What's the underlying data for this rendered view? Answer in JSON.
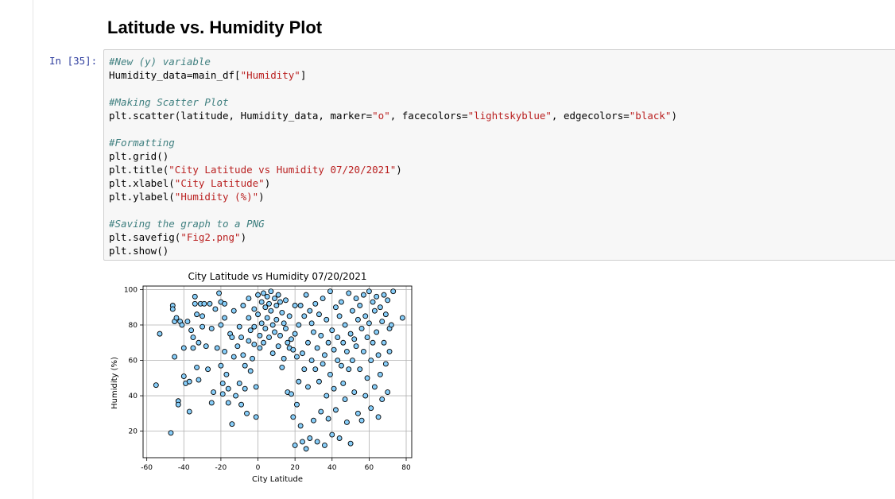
{
  "heading": "Latitude vs. Humidity Plot",
  "prompt": "In [35]:",
  "code_lines": [
    [
      {
        "t": "#New (y) variable",
        "c": "cm"
      }
    ],
    [
      {
        "t": "Humidity_data=main_df[",
        "c": ""
      },
      {
        "t": "\"Humidity\"",
        "c": "st"
      },
      {
        "t": "]",
        "c": ""
      }
    ],
    [],
    [
      {
        "t": "#Making Scatter Plot",
        "c": "cm"
      }
    ],
    [
      {
        "t": "plt.scatter(latitude, Humidity_data, marker=",
        "c": ""
      },
      {
        "t": "\"o\"",
        "c": "st"
      },
      {
        "t": ", facecolors=",
        "c": ""
      },
      {
        "t": "\"lightskyblue\"",
        "c": "st"
      },
      {
        "t": ", edgecolors=",
        "c": ""
      },
      {
        "t": "\"black\"",
        "c": "st"
      },
      {
        "t": ")",
        "c": ""
      }
    ],
    [],
    [
      {
        "t": "#Formatting",
        "c": "cm"
      }
    ],
    [
      {
        "t": "plt.grid()",
        "c": ""
      }
    ],
    [
      {
        "t": "plt.title(",
        "c": ""
      },
      {
        "t": "\"City Latitude vs Humidity 07/20/2021\"",
        "c": "st"
      },
      {
        "t": ")",
        "c": ""
      }
    ],
    [
      {
        "t": "plt.xlabel(",
        "c": ""
      },
      {
        "t": "\"City Latitude\"",
        "c": "st"
      },
      {
        "t": ")",
        "c": ""
      }
    ],
    [
      {
        "t": "plt.ylabel(",
        "c": ""
      },
      {
        "t": "\"Humidity (%)\"",
        "c": "st"
      },
      {
        "t": ")",
        "c": ""
      }
    ],
    [],
    [
      {
        "t": "#Saving the graph to a PNG",
        "c": "cm"
      }
    ],
    [
      {
        "t": "plt.savefig(",
        "c": ""
      },
      {
        "t": "\"Fig2.png\"",
        "c": "st"
      },
      {
        "t": ")",
        "c": ""
      }
    ],
    [
      {
        "t": "plt.show()",
        "c": ""
      }
    ]
  ],
  "colors": {
    "marker_face": "#87cefa",
    "marker_edge": "#000000",
    "grid": "#b0b0b0",
    "string": "#ba2121",
    "comment": "#408080",
    "prompt": "#303f9f"
  },
  "chart_data": {
    "type": "scatter",
    "title": "City Latitude vs Humidity 07/20/2021",
    "xlabel": "City Latitude",
    "ylabel": "Humidity (%)",
    "xlim": [
      -62,
      83
    ],
    "ylim": [
      5,
      102
    ],
    "xticks": [
      -60,
      -40,
      -20,
      0,
      20,
      40,
      60,
      80
    ],
    "yticks": [
      20,
      40,
      60,
      80,
      100
    ],
    "grid": true,
    "points": [
      [
        -55,
        46
      ],
      [
        -53,
        75
      ],
      [
        -47,
        19
      ],
      [
        -46,
        91
      ],
      [
        -46,
        89
      ],
      [
        -45,
        82
      ],
      [
        -45,
        62
      ],
      [
        -44,
        84
      ],
      [
        -43,
        37
      ],
      [
        -43,
        35
      ],
      [
        -42,
        82
      ],
      [
        -41,
        80
      ],
      [
        -40,
        67
      ],
      [
        -40,
        51
      ],
      [
        -39,
        47
      ],
      [
        -38,
        82
      ],
      [
        -37,
        48
      ],
      [
        -37,
        31
      ],
      [
        -36,
        77
      ],
      [
        -35,
        73
      ],
      [
        -35,
        67
      ],
      [
        -34,
        96
      ],
      [
        -34,
        92
      ],
      [
        -33,
        86
      ],
      [
        -33,
        56
      ],
      [
        -32,
        70
      ],
      [
        -32,
        49
      ],
      [
        -31,
        92
      ],
      [
        -30,
        85
      ],
      [
        -30,
        79
      ],
      [
        -29,
        92
      ],
      [
        -28,
        68
      ],
      [
        -27,
        55
      ],
      [
        -26,
        92
      ],
      [
        -25,
        36
      ],
      [
        -25,
        78
      ],
      [
        -24,
        42
      ],
      [
        -23,
        89
      ],
      [
        -22,
        67
      ],
      [
        -21,
        98
      ],
      [
        -20,
        93
      ],
      [
        -20,
        80
      ],
      [
        -20,
        57
      ],
      [
        -19,
        47
      ],
      [
        -19,
        41
      ],
      [
        -18,
        92
      ],
      [
        -18,
        84
      ],
      [
        -18,
        65
      ],
      [
        -17,
        52
      ],
      [
        -16,
        44
      ],
      [
        -16,
        36
      ],
      [
        -15,
        75
      ],
      [
        -14,
        73
      ],
      [
        -14,
        24
      ],
      [
        -13,
        88
      ],
      [
        -13,
        62
      ],
      [
        -12,
        40
      ],
      [
        -11,
        68
      ],
      [
        -10,
        79
      ],
      [
        -10,
        47
      ],
      [
        -9,
        73
      ],
      [
        -9,
        35
      ],
      [
        -8,
        91
      ],
      [
        -8,
        63
      ],
      [
        -7,
        57
      ],
      [
        -7,
        44
      ],
      [
        -6,
        30
      ],
      [
        -5,
        95
      ],
      [
        -5,
        84
      ],
      [
        -5,
        71
      ],
      [
        -4,
        77
      ],
      [
        -4,
        54
      ],
      [
        -3,
        61
      ],
      [
        -2,
        89
      ],
      [
        -2,
        79
      ],
      [
        -2,
        69
      ],
      [
        -1,
        45
      ],
      [
        -1,
        28
      ],
      [
        0,
        97
      ],
      [
        0,
        86
      ],
      [
        1,
        74
      ],
      [
        1,
        67
      ],
      [
        2,
        93
      ],
      [
        2,
        81
      ],
      [
        3,
        98
      ],
      [
        3,
        70
      ],
      [
        4,
        90
      ],
      [
        4,
        78
      ],
      [
        5,
        96
      ],
      [
        5,
        84
      ],
      [
        6,
        92
      ],
      [
        6,
        73
      ],
      [
        7,
        99
      ],
      [
        7,
        88
      ],
      [
        8,
        80
      ],
      [
        8,
        64
      ],
      [
        9,
        95
      ],
      [
        9,
        76
      ],
      [
        10,
        91
      ],
      [
        10,
        83
      ],
      [
        11,
        97
      ],
      [
        11,
        68
      ],
      [
        12,
        74
      ],
      [
        12,
        93
      ],
      [
        13,
        87
      ],
      [
        13,
        56
      ],
      [
        14,
        81
      ],
      [
        14,
        61
      ],
      [
        15,
        78
      ],
      [
        15,
        94
      ],
      [
        16,
        70
      ],
      [
        16,
        42
      ],
      [
        17,
        67
      ],
      [
        17,
        85
      ],
      [
        18,
        72
      ],
      [
        18,
        41
      ],
      [
        19,
        66
      ],
      [
        19,
        28
      ],
      [
        20,
        91
      ],
      [
        20,
        75
      ],
      [
        20,
        12
      ],
      [
        21,
        62
      ],
      [
        21,
        35
      ],
      [
        22,
        80
      ],
      [
        22,
        48
      ],
      [
        23,
        91
      ],
      [
        23,
        23
      ],
      [
        24,
        64
      ],
      [
        24,
        14
      ],
      [
        25,
        85
      ],
      [
        25,
        55
      ],
      [
        26,
        97
      ],
      [
        26,
        10
      ],
      [
        27,
        70
      ],
      [
        27,
        45
      ],
      [
        28,
        88
      ],
      [
        28,
        16
      ],
      [
        29,
        81
      ],
      [
        29,
        60
      ],
      [
        30,
        76
      ],
      [
        30,
        26
      ],
      [
        31,
        92
      ],
      [
        31,
        55
      ],
      [
        32,
        67
      ],
      [
        32,
        14
      ],
      [
        33,
        86
      ],
      [
        33,
        48
      ],
      [
        34,
        74
      ],
      [
        34,
        31
      ],
      [
        35,
        95
      ],
      [
        35,
        58
      ],
      [
        36,
        63
      ],
      [
        36,
        12
      ],
      [
        37,
        83
      ],
      [
        37,
        40
      ],
      [
        38,
        70
      ],
      [
        38,
        27
      ],
      [
        39,
        99
      ],
      [
        39,
        52
      ],
      [
        40,
        77
      ],
      [
        40,
        18
      ],
      [
        41,
        66
      ],
      [
        41,
        44
      ],
      [
        42,
        90
      ],
      [
        42,
        32
      ],
      [
        43,
        60
      ],
      [
        43,
        73
      ],
      [
        44,
        85
      ],
      [
        44,
        16
      ],
      [
        45,
        57
      ],
      [
        45,
        93
      ],
      [
        46,
        70
      ],
      [
        46,
        47
      ],
      [
        47,
        80
      ],
      [
        47,
        38
      ],
      [
        48,
        65
      ],
      [
        48,
        25
      ],
      [
        49,
        98
      ],
      [
        49,
        55
      ],
      [
        50,
        75
      ],
      [
        50,
        13
      ],
      [
        51,
        88
      ],
      [
        51,
        60
      ],
      [
        52,
        72
      ],
      [
        52,
        42
      ],
      [
        53,
        95
      ],
      [
        53,
        68
      ],
      [
        54,
        83
      ],
      [
        54,
        30
      ],
      [
        55,
        91
      ],
      [
        55,
        55
      ],
      [
        56,
        78
      ],
      [
        56,
        26
      ],
      [
        57,
        97
      ],
      [
        57,
        65
      ],
      [
        58,
        85
      ],
      [
        58,
        40
      ],
      [
        59,
        73
      ],
      [
        59,
        50
      ],
      [
        60,
        99
      ],
      [
        60,
        81
      ],
      [
        61,
        60
      ],
      [
        61,
        33
      ],
      [
        62,
        93
      ],
      [
        62,
        70
      ],
      [
        63,
        88
      ],
      [
        63,
        45
      ],
      [
        64,
        96
      ],
      [
        64,
        76
      ],
      [
        65,
        63
      ],
      [
        65,
        28
      ],
      [
        66,
        90
      ],
      [
        66,
        52
      ],
      [
        67,
        82
      ],
      [
        67,
        38
      ],
      [
        68,
        97
      ],
      [
        68,
        70
      ],
      [
        69,
        86
      ],
      [
        69,
        58
      ],
      [
        70,
        94
      ],
      [
        70,
        42
      ],
      [
        71,
        78
      ],
      [
        71,
        65
      ],
      [
        72,
        80
      ],
      [
        73,
        99
      ],
      [
        78,
        84
      ]
    ]
  }
}
